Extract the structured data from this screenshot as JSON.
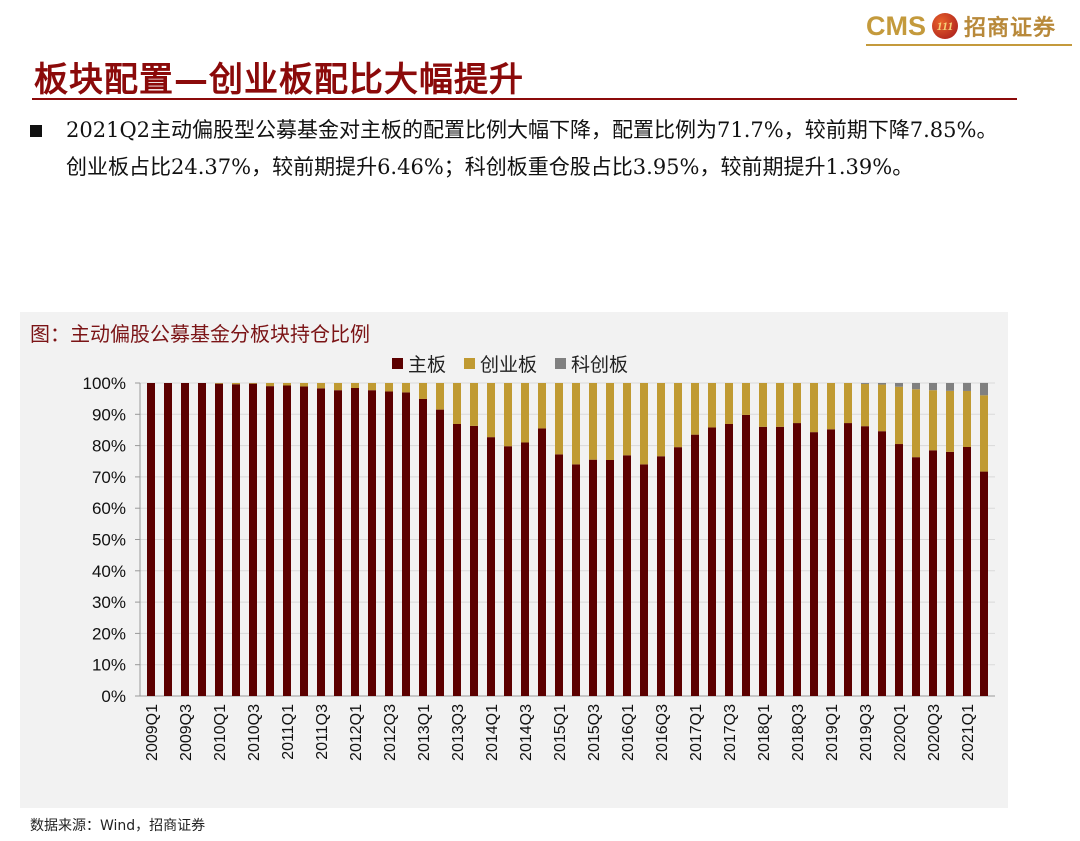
{
  "logo": {
    "cms": "CMS",
    "badge": "111",
    "name_cn": "招商证券"
  },
  "page_title": "板块配置—创业板配比大幅提升",
  "bullet_text": "2021Q2主动偏股型公募基金对主板的配置比例大幅下降，配置比例为71.7%，较前期下降7.85%。创业板占比24.37%，较前期提升6.46%；科创板重仓股占比3.95%，较前期提升1.39%。",
  "source": "数据来源：Wind，招商证券",
  "colors": {
    "main": "#5c0000",
    "gem": "#c09a32",
    "star": "#808080",
    "title": "#8b0a0a"
  },
  "chart_data": {
    "type": "bar",
    "stacked": true,
    "title": "图：主动偏股公募基金分板块持仓比例",
    "xlabel": "",
    "ylabel": "",
    "ylim": [
      0,
      100
    ],
    "yticks": [
      "0%",
      "10%",
      "20%",
      "30%",
      "40%",
      "50%",
      "60%",
      "70%",
      "80%",
      "90%",
      "100%"
    ],
    "legend_position": "top",
    "categories": [
      "2009Q1",
      "2009Q2",
      "2009Q3",
      "2009Q4",
      "2010Q1",
      "2010Q2",
      "2010Q3",
      "2010Q4",
      "2011Q1",
      "2011Q2",
      "2011Q3",
      "2011Q4",
      "2012Q1",
      "2012Q2",
      "2012Q3",
      "2012Q4",
      "2013Q1",
      "2013Q2",
      "2013Q3",
      "2013Q4",
      "2014Q1",
      "2014Q2",
      "2014Q3",
      "2014Q4",
      "2015Q1",
      "2015Q2",
      "2015Q3",
      "2015Q4",
      "2016Q1",
      "2016Q2",
      "2016Q3",
      "2016Q4",
      "2017Q1",
      "2017Q2",
      "2017Q3",
      "2017Q4",
      "2018Q1",
      "2018Q2",
      "2018Q3",
      "2018Q4",
      "2019Q1",
      "2019Q2",
      "2019Q3",
      "2019Q4",
      "2020Q1",
      "2020Q2",
      "2020Q3",
      "2020Q4",
      "2021Q1",
      "2021Q2"
    ],
    "series": [
      {
        "name": "主板",
        "values": [
          100,
          100,
          100,
          100,
          99.8,
          99.6,
          99.8,
          99.0,
          99.2,
          98.9,
          98.3,
          97.7,
          98.4,
          97.7,
          97.3,
          97.0,
          94.9,
          91.5,
          86.9,
          86.3,
          82.7,
          79.8,
          81.0,
          85.5,
          77.2,
          74.0,
          75.5,
          75.4,
          76.9,
          74.0,
          76.6,
          79.5,
          83.5,
          85.8,
          86.9,
          89.8,
          86.0,
          86.0,
          87.2,
          84.3,
          85.2,
          87.2,
          86.2,
          84.6,
          80.5,
          76.3,
          78.5,
          78.0,
          79.55,
          71.7
        ]
      },
      {
        "name": "创业板",
        "values": [
          0,
          0,
          0,
          0,
          0.2,
          0.4,
          0.2,
          1.0,
          0.8,
          1.1,
          1.7,
          2.3,
          1.6,
          2.3,
          2.7,
          3.0,
          5.1,
          8.5,
          13.1,
          13.7,
          17.3,
          20.2,
          19.0,
          14.5,
          22.8,
          26.0,
          24.5,
          24.6,
          23.1,
          26.0,
          23.4,
          20.5,
          16.5,
          14.2,
          13.1,
          10.2,
          14.0,
          14.0,
          12.8,
          15.7,
          14.8,
          12.8,
          13.5,
          14.9,
          18.3,
          21.7,
          19.2,
          19.5,
          17.91,
          24.37
        ]
      },
      {
        "name": "科创板",
        "values": [
          0,
          0,
          0,
          0,
          0,
          0,
          0,
          0,
          0,
          0,
          0,
          0,
          0,
          0,
          0,
          0,
          0,
          0,
          0,
          0,
          0,
          0,
          0,
          0,
          0,
          0,
          0,
          0,
          0,
          0,
          0,
          0,
          0,
          0,
          0,
          0,
          0,
          0,
          0,
          0,
          0,
          0,
          0.3,
          0.5,
          1.2,
          2.0,
          2.3,
          2.5,
          2.56,
          3.95
        ]
      }
    ]
  }
}
